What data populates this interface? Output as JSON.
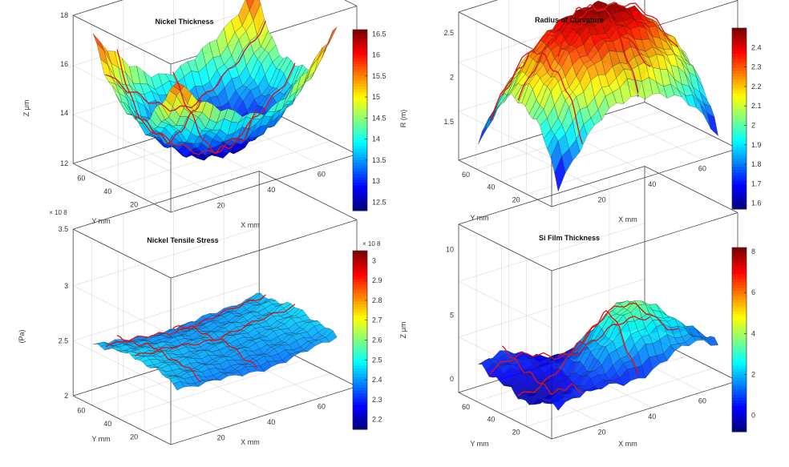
{
  "figure": {
    "panels": [
      {
        "title": "Nickel Thickness",
        "zlabel": "Z  μm",
        "xlabel": "X mm",
        "ylabel": "Y mm",
        "z_ticks": [
          "12",
          "14",
          "16",
          "18"
        ],
        "x_ticks": [
          "20",
          "40",
          "60"
        ],
        "y_ticks": [
          "20",
          "40",
          "60"
        ],
        "z_exponent": "",
        "colorbar": {
          "ticks": [
            "12.5",
            "13",
            "13.5",
            "14",
            "14.5",
            "15",
            "15.5",
            "16",
            "16.5"
          ],
          "range": [
            12.3,
            16.6
          ],
          "exponent": ""
        }
      },
      {
        "title": "Radius of Curvature",
        "zlabel": "R (m)",
        "xlabel": "X mm",
        "ylabel": "Y mm",
        "z_ticks": [
          "1.5",
          "2",
          "2.5"
        ],
        "x_ticks": [
          "20",
          "40",
          "60"
        ],
        "y_ticks": [
          "20",
          "40",
          "60"
        ],
        "z_exponent": "",
        "colorbar": {
          "ticks": [
            "1.6",
            "1.7",
            "1.8",
            "1.9",
            "2",
            "2.1",
            "2.2",
            "2.3",
            "2.4"
          ],
          "range": [
            1.57,
            2.5
          ],
          "exponent": ""
        }
      },
      {
        "title": "Nickel Tensile Stress",
        "zlabel": "(Pa)",
        "xlabel": "X mm",
        "ylabel": "Y mm",
        "z_ticks": [
          "2",
          "2.5",
          "3",
          "3.5"
        ],
        "x_ticks": [
          "20",
          "40",
          "60"
        ],
        "y_ticks": [
          "20",
          "40",
          "60"
        ],
        "z_exponent": "× 10 8",
        "colorbar": {
          "ticks": [
            "2.2",
            "2.3",
            "2.4",
            "2.5",
            "2.6",
            "2.7",
            "2.8",
            "2.9",
            "3"
          ],
          "range": [
            2.15,
            3.05
          ],
          "exponent": "× 10 8"
        }
      },
      {
        "title": "Si Film Thickness",
        "zlabel": "Z  μm",
        "xlabel": "X mm",
        "ylabel": "Y mm",
        "z_ticks": [
          "0",
          "5",
          "10"
        ],
        "x_ticks": [
          "20",
          "40",
          "60"
        ],
        "y_ticks": [
          "20",
          "40",
          "60"
        ],
        "z_exponent": "",
        "colorbar": {
          "ticks": [
            "0",
            "2",
            "4",
            "6",
            "8"
          ],
          "range": [
            -0.8,
            8.2
          ],
          "exponent": ""
        }
      }
    ]
  },
  "chart_data": [
    {
      "type": "surface",
      "title": "Nickel Thickness",
      "xlabel": "X mm",
      "ylabel": "Y mm",
      "zlabel": "Z μm",
      "xlim": [
        0,
        75
      ],
      "ylim": [
        0,
        75
      ],
      "zlim": [
        12,
        18
      ],
      "x_ticks": [
        20,
        40,
        60
      ],
      "y_ticks": [
        20,
        40,
        60
      ],
      "z_ticks": [
        12,
        14,
        16,
        18
      ],
      "shape": "bowl",
      "z_center": 12.3,
      "z_edge": 16.5,
      "colormap": "jet",
      "color_range": [
        12.3,
        16.6
      ],
      "grid": true
    },
    {
      "type": "surface",
      "title": "Radius of Curvature",
      "xlabel": "X mm",
      "ylabel": "Y mm",
      "zlabel": "R (m)",
      "xlim": [
        0,
        75
      ],
      "ylim": [
        0,
        75
      ],
      "zlim": [
        1.5,
        2.5
      ],
      "x_ticks": [
        20,
        40,
        60
      ],
      "y_ticks": [
        20,
        40,
        60
      ],
      "z_ticks": [
        1.5,
        2,
        2.5
      ],
      "shape": "dome",
      "z_center": 2.47,
      "z_edge": 1.6,
      "colormap": "jet",
      "color_range": [
        1.57,
        2.5
      ],
      "grid": true
    },
    {
      "type": "surface",
      "title": "Nickel Tensile Stress",
      "xlabel": "X mm",
      "ylabel": "Y mm",
      "zlabel": "(Pa)",
      "z_scale_exponent": 8,
      "xlim": [
        0,
        75
      ],
      "ylim": [
        0,
        75
      ],
      "zlim": [
        2,
        3.5
      ],
      "x_ticks": [
        20,
        40,
        60
      ],
      "y_ticks": [
        20,
        40,
        60
      ],
      "z_ticks": [
        2,
        2.5,
        3,
        3.5
      ],
      "shape": "saddle",
      "z_center": 2.45,
      "z_edge": 2.5,
      "colormap": "jet",
      "color_range": [
        2.15,
        3.05
      ],
      "grid": true
    },
    {
      "type": "surface",
      "title": "Si Film Thickness",
      "xlabel": "X mm",
      "ylabel": "Y mm",
      "zlabel": "Z μm",
      "xlim": [
        0,
        75
      ],
      "ylim": [
        0,
        75
      ],
      "zlim": [
        -1,
        12
      ],
      "x_ticks": [
        20,
        40,
        60
      ],
      "y_ticks": [
        20,
        40,
        60
      ],
      "z_ticks": [
        0,
        5,
        10
      ],
      "shape": "irregular",
      "z_min": 0,
      "z_max": 8,
      "colormap": "jet",
      "color_range": [
        -0.8,
        8.2
      ],
      "grid": true
    }
  ]
}
